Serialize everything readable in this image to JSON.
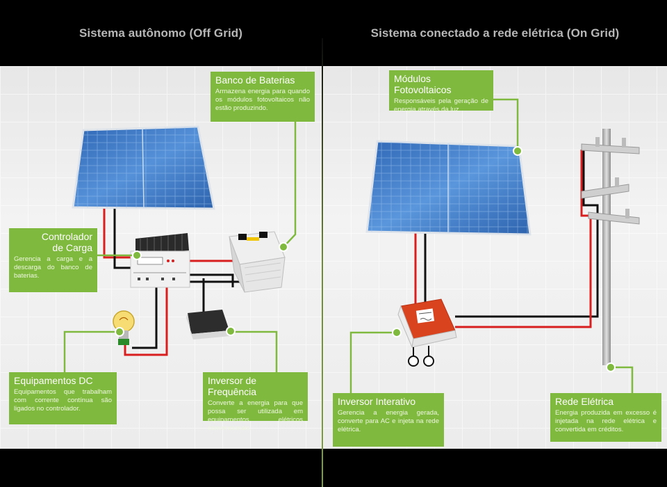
{
  "left": {
    "title": "Sistema autônomo (Off Grid)",
    "callouts": {
      "banco": {
        "title": "Banco de Baterias",
        "text": "Armazena energia para quando os módulos fotovoltaicos não estão produzindo."
      },
      "controlador": {
        "title_line1": "Controlador",
        "title_line2": "de Carga",
        "text": "Gerencia a carga e a descarga do banco de baterias."
      },
      "equipamentos": {
        "title": "Equipamentos DC",
        "text": "Equipamentos que trabalham com corrente contínua são ligados no controlador."
      },
      "inversor": {
        "title": "Inversor de Frequência",
        "text": "Converte a energia para que possa ser utilizada em equipamentos elétricos convencionais."
      }
    }
  },
  "right": {
    "title": "Sistema conectado a rede elétrica (On Grid)",
    "callouts": {
      "modulos": {
        "title": "Módulos Fotovoltaicos",
        "text": "Responsáveis pela geração de energia através da luz."
      },
      "inversor": {
        "title": "Inversor Interativo",
        "text": "Gerencia a energia gerada, converte para AC e injeta na rede elétrica."
      },
      "rede": {
        "title": "Rede Elétrica",
        "text": "Energia produzida em excesso é injetada na rede elétrica e convertida em créditos."
      }
    }
  },
  "colors": {
    "accent_green": "#7fb93e",
    "wire_red": "#d81e1e",
    "wire_black": "#111111",
    "panel_blue": "#3a78c8",
    "background": "#000000"
  }
}
